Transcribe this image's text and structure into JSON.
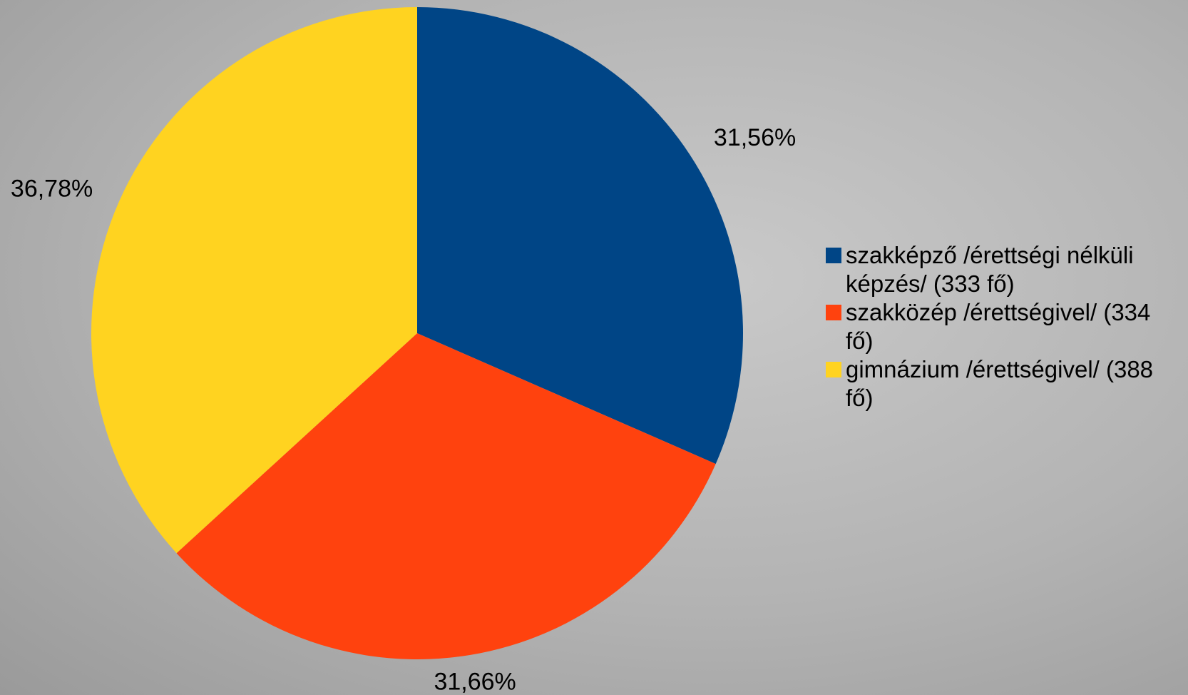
{
  "chart_data": {
    "type": "pie",
    "categories": [
      "szakképző /érettségi nélküli képzés/ (333 fő)",
      "szakközép /érettségivel/ (334 fő)",
      "gimnázium /érettségivel/ (388 fő)"
    ],
    "series": [
      {
        "values": [
          31.56,
          31.66,
          36.78
        ],
        "value_labels": [
          "31,56%",
          "31,66%",
          "36,78%"
        ],
        "colors": [
          "#004586",
          "#ff420e",
          "#ffd320"
        ]
      }
    ],
    "legend": "right"
  }
}
